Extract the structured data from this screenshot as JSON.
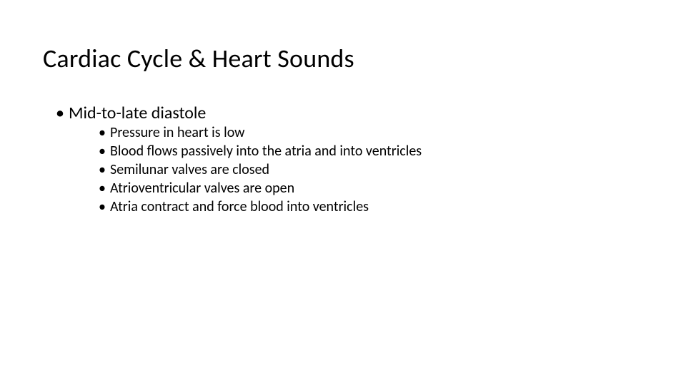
{
  "slide": {
    "title": "Cardiac Cycle & Heart Sounds",
    "bullets": {
      "level1": [
        {
          "text": "Mid-to-late diastole",
          "children": [
            "Pressure in heart is low",
            "Blood flows passively into the atria and into ventricles",
            "Semilunar valves are closed",
            "Atrioventricular valves are open",
            "Atria contract and force blood into ventricles"
          ]
        }
      ]
    }
  },
  "style": {
    "background_color": "#ffffff",
    "text_color": "#000000",
    "title_fontsize": 36,
    "level1_fontsize": 24,
    "level2_fontsize": 20,
    "font_family": "Calibri"
  }
}
